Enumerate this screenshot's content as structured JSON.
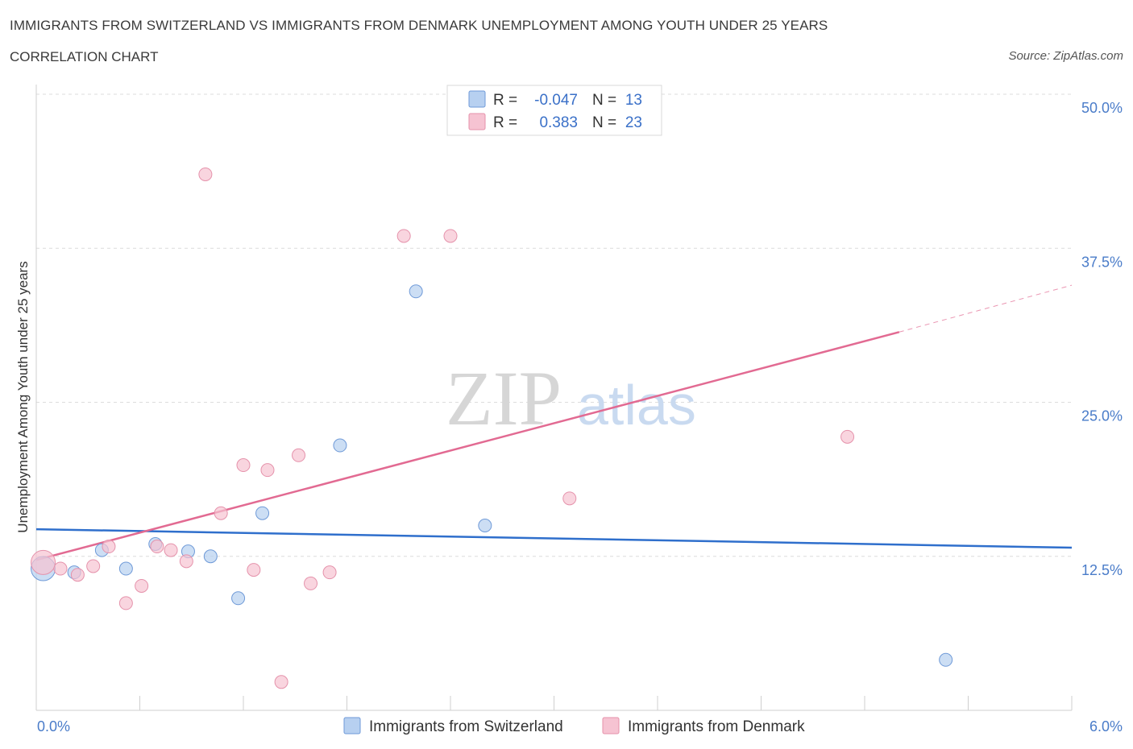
{
  "header": {
    "title": "IMMIGRANTS FROM SWITZERLAND VS IMMIGRANTS FROM DENMARK UNEMPLOYMENT AMONG YOUTH UNDER 25 YEARS",
    "subtitle": "CORRELATION CHART",
    "source": "Source: ZipAtlas.com"
  },
  "watermark": {
    "zip": "ZIP",
    "atlas": "atlas"
  },
  "stats": [
    {
      "r_label": "R =",
      "r_value": "-0.047",
      "n_label": "N =",
      "n_value": "13"
    },
    {
      "r_label": "R =",
      "r_value": "0.383",
      "n_label": "N =",
      "n_value": "23"
    }
  ],
  "colors": {
    "switzerland_fill": "#b7d0f0",
    "switzerland_stroke": "#6f9ad8",
    "switzerland_line": "#2f6fcc",
    "denmark_fill": "#f6c3d2",
    "denmark_stroke": "#e592ab",
    "denmark_line": "#e26a92",
    "tick_text": "#4a7cc9",
    "value_text": "#3a70c8"
  },
  "chart_data": {
    "type": "scatter",
    "title": "IMMIGRANTS FROM SWITZERLAND VS IMMIGRANTS FROM DENMARK UNEMPLOYMENT AMONG YOUTH UNDER 25 YEARS",
    "xlabel": "",
    "ylabel": "Unemployment Among Youth under 25 years",
    "xlim": [
      0,
      6
    ],
    "ylim": [
      0,
      50
    ],
    "x_tick_labels": [
      "0.0%",
      "6.0%"
    ],
    "y_ticks": [
      12.5,
      25.0,
      37.5,
      50.0
    ],
    "y_tick_labels": [
      "12.5%",
      "25.0%",
      "37.5%",
      "50.0%"
    ],
    "grid": true,
    "legend_position": "bottom-center",
    "series": [
      {
        "name": "Immigrants from Switzerland",
        "r": -0.047,
        "n": 13,
        "trend": {
          "x": [
            0,
            6
          ],
          "y": [
            14.7,
            13.2
          ]
        },
        "points": [
          {
            "x": 0.04,
            "y": 11.5,
            "big": true
          },
          {
            "x": 0.22,
            "y": 11.2
          },
          {
            "x": 0.38,
            "y": 13.0
          },
          {
            "x": 0.52,
            "y": 11.5
          },
          {
            "x": 0.69,
            "y": 13.5
          },
          {
            "x": 0.88,
            "y": 12.9
          },
          {
            "x": 1.01,
            "y": 12.5
          },
          {
            "x": 1.17,
            "y": 9.1
          },
          {
            "x": 1.31,
            "y": 16.0
          },
          {
            "x": 1.76,
            "y": 21.5
          },
          {
            "x": 2.2,
            "y": 34.0
          },
          {
            "x": 2.6,
            "y": 15.0
          },
          {
            "x": 5.27,
            "y": 4.1
          }
        ]
      },
      {
        "name": "Immigrants from Denmark",
        "r": 0.383,
        "n": 23,
        "trend": {
          "x": [
            0,
            5.0
          ],
          "y": [
            12.2,
            30.7
          ]
        },
        "trend_dashed": {
          "x": [
            5.0,
            6.0
          ],
          "y": [
            30.7,
            34.5
          ]
        },
        "points": [
          {
            "x": 0.04,
            "y": 12.0,
            "big": true
          },
          {
            "x": 0.14,
            "y": 11.5
          },
          {
            "x": 0.24,
            "y": 11.0
          },
          {
            "x": 0.33,
            "y": 11.7
          },
          {
            "x": 0.42,
            "y": 13.3
          },
          {
            "x": 0.52,
            "y": 8.7
          },
          {
            "x": 0.61,
            "y": 10.1
          },
          {
            "x": 0.7,
            "y": 13.3
          },
          {
            "x": 0.78,
            "y": 13.0
          },
          {
            "x": 0.87,
            "y": 12.1
          },
          {
            "x": 0.98,
            "y": 43.5
          },
          {
            "x": 1.07,
            "y": 16.0
          },
          {
            "x": 1.2,
            "y": 19.9
          },
          {
            "x": 1.26,
            "y": 11.4
          },
          {
            "x": 1.34,
            "y": 19.5
          },
          {
            "x": 1.42,
            "y": 2.3
          },
          {
            "x": 1.52,
            "y": 20.7
          },
          {
            "x": 1.59,
            "y": 10.3
          },
          {
            "x": 1.7,
            "y": 11.2
          },
          {
            "x": 2.13,
            "y": 38.5
          },
          {
            "x": 2.4,
            "y": 38.5
          },
          {
            "x": 3.09,
            "y": 17.2
          },
          {
            "x": 4.7,
            "y": 22.2
          }
        ]
      }
    ]
  }
}
